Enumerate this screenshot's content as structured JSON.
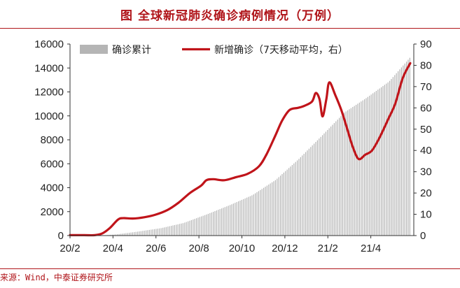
{
  "header": {
    "title": "图  全球新冠肺炎确诊病例情况（万例）"
  },
  "footer": {
    "source": "来源：Wind，中泰证券研究所"
  },
  "chart_data": {
    "type": "bar+line",
    "title": "图  全球新冠肺炎确诊病例情况（万例）",
    "colors": {
      "bars": "#b5b5b5",
      "line": "#c0141a",
      "accent": "#b0151a"
    },
    "legend": [
      "确诊累计",
      "新增确诊（7天移动平均，右）"
    ],
    "legend_placement": "top",
    "grid": false,
    "x_ticks": [
      "20/2",
      "20/4",
      "20/6",
      "20/8",
      "20/10",
      "20/12",
      "21/2",
      "21/4"
    ],
    "y_left": {
      "range": [
        0,
        16000
      ],
      "ticks": [
        "0",
        "2000",
        "4000",
        "6000",
        "8000",
        "10000",
        "12000",
        "14000",
        "16000"
      ]
    },
    "y_right": {
      "range": [
        0,
        90
      ],
      "ticks": [
        "0",
        "10",
        "20",
        "30",
        "40",
        "50",
        "60",
        "70",
        "80",
        "90"
      ]
    },
    "series": [
      {
        "name": "确诊累计",
        "axis": "left",
        "type": "bar",
        "points": [
          [
            "2020-02-01",
            1
          ],
          [
            "2020-03-01",
            9
          ],
          [
            "2020-03-15",
            16
          ],
          [
            "2020-04-01",
            90
          ],
          [
            "2020-04-15",
            200
          ],
          [
            "2020-05-01",
            330
          ],
          [
            "2020-06-01",
            620
          ],
          [
            "2020-07-01",
            1050
          ],
          [
            "2020-08-01",
            1770
          ],
          [
            "2020-09-01",
            2550
          ],
          [
            "2020-10-01",
            3380
          ],
          [
            "2020-11-01",
            4650
          ],
          [
            "2020-12-01",
            6350
          ],
          [
            "2021-01-01",
            8300
          ],
          [
            "2021-02-01",
            10300
          ],
          [
            "2021-03-01",
            11450
          ],
          [
            "2021-04-01",
            12850
          ],
          [
            "2021-05-01",
            15000
          ]
        ]
      },
      {
        "name": "新增确诊（7天移动平均，右）",
        "axis": "right",
        "type": "line",
        "points": [
          [
            "2020-02-01",
            0.2
          ],
          [
            "2020-02-20",
            0.2
          ],
          [
            "2020-03-05",
            0.2
          ],
          [
            "2020-03-15",
            1.0
          ],
          [
            "2020-03-25",
            3.5
          ],
          [
            "2020-04-05",
            7.5
          ],
          [
            "2020-04-12",
            8.2
          ],
          [
            "2020-04-25",
            8.0
          ],
          [
            "2020-05-10",
            8.6
          ],
          [
            "2020-05-25",
            9.8
          ],
          [
            "2020-06-10",
            12.0
          ],
          [
            "2020-06-25",
            15.5
          ],
          [
            "2020-07-10",
            20.0
          ],
          [
            "2020-07-25",
            23.5
          ],
          [
            "2020-08-01",
            26.0
          ],
          [
            "2020-08-10",
            26.5
          ],
          [
            "2020-08-25",
            26.0
          ],
          [
            "2020-09-10",
            27.5
          ],
          [
            "2020-09-25",
            29.0
          ],
          [
            "2020-10-10",
            32.5
          ],
          [
            "2020-10-20",
            38.0
          ],
          [
            "2020-11-01",
            47.0
          ],
          [
            "2020-11-10",
            54.0
          ],
          [
            "2020-11-20",
            59.0
          ],
          [
            "2020-12-01",
            60.0
          ],
          [
            "2020-12-10",
            61.0
          ],
          [
            "2020-12-20",
            63.0
          ],
          [
            "2020-12-25",
            67.0
          ],
          [
            "2020-12-30",
            64.0
          ],
          [
            "2021-01-03",
            56.0
          ],
          [
            "2021-01-08",
            64.0
          ],
          [
            "2021-01-12",
            72.0
          ],
          [
            "2021-01-20",
            66.0
          ],
          [
            "2021-01-28",
            59.0
          ],
          [
            "2021-02-05",
            50.0
          ],
          [
            "2021-02-12",
            42.0
          ],
          [
            "2021-02-20",
            36.0
          ],
          [
            "2021-03-01",
            38.0
          ],
          [
            "2021-03-10",
            40.0
          ],
          [
            "2021-03-20",
            46.0
          ],
          [
            "2021-04-01",
            55.0
          ],
          [
            "2021-04-10",
            62.0
          ],
          [
            "2021-04-20",
            74.0
          ],
          [
            "2021-04-30",
            81.0
          ]
        ]
      }
    ]
  }
}
